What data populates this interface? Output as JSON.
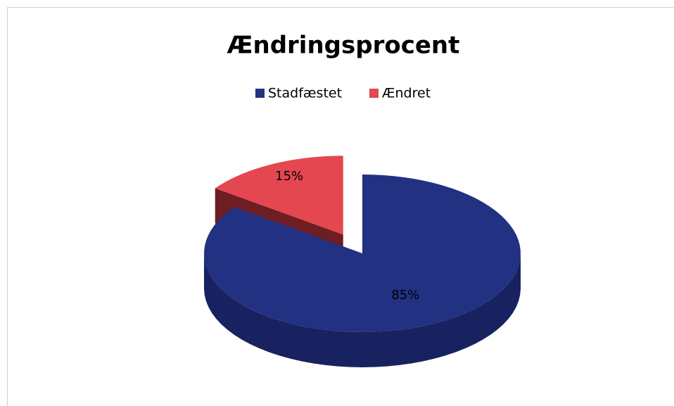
{
  "chart_data": {
    "type": "pie",
    "title": "Ændringsprocent",
    "categories": [
      "Stadfæstet",
      "Ændret"
    ],
    "values": [
      85,
      15
    ],
    "value_labels": [
      "85%",
      "15%"
    ],
    "colors": [
      "#233183",
      "#e4474f"
    ],
    "side_colors": [
      "#182260",
      "#6e1d22"
    ],
    "legend": "top"
  }
}
